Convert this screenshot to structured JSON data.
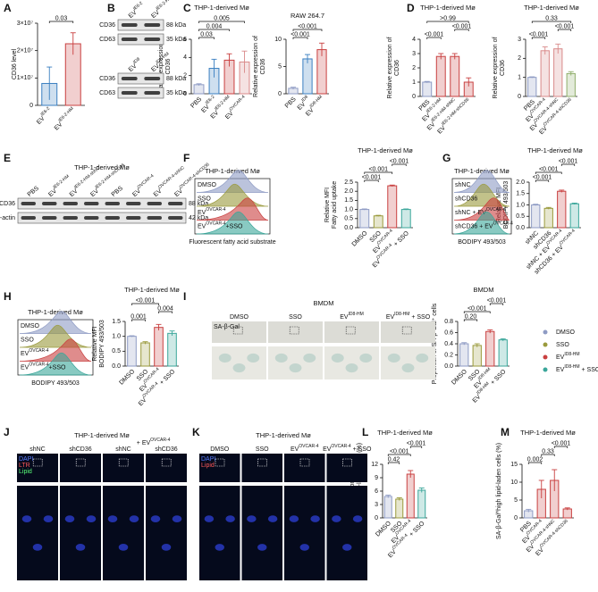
{
  "chart_data": [
    {
      "type": "bar",
      "ylabel": [
        "CD36 level"
      ],
      "categories": [
        {
          "t": "EV",
          "sup": "IE6-2"
        },
        {
          "t": "EV",
          "sup": "IE6-2-HM"
        }
      ],
      "values": [
        8000000,
        22500000
      ],
      "errors": [
        6000000,
        4000000
      ],
      "colors": [
        "#3a7fc1",
        "#c94040"
      ],
      "ylim": [
        0,
        30000000
      ],
      "yticks": [
        0,
        {
          "value": 10000000,
          "label": "1×10⁷"
        },
        {
          "value": 20000000,
          "label": "2×10⁷"
        },
        {
          "value": 30000000,
          "label": "3×10⁷"
        }
      ],
      "brackets": [
        {
          "label": "0.03",
          "from": 0,
          "to": 1
        }
      ]
    },
    {
      "type": "bar",
      "title": "THP-1-derived Mø",
      "ylabel": [
        "Relative expression of",
        "CD36"
      ],
      "categories": [
        "PBS",
        {
          "t": "EV",
          "sup": "IE6-2"
        },
        {
          "t": "EV",
          "sup": "IE6-2-HM"
        },
        {
          "t": "EV",
          "sup": "OVCAR-4"
        }
      ],
      "values": [
        1,
        2.8,
        3.7,
        3.5
      ],
      "errors": [
        0.1,
        1.0,
        0.7,
        1.2
      ],
      "colors": [
        "#8e9bc4",
        "#3a7fc1",
        "#c94040",
        "#d98a8a"
      ],
      "ylim": [
        0,
        6
      ],
      "yticks": [
        0,
        2,
        4,
        6
      ],
      "brackets": [
        {
          "label": "0.03",
          "from": 0,
          "to": 1
        },
        {
          "label": "0.004",
          "from": 0,
          "to": 2
        },
        {
          "label": "0.005",
          "from": 0,
          "to": 3
        }
      ]
    },
    {
      "type": "bar",
      "title": "RAW 264.7",
      "ylabel": [
        "Relative expression of",
        "CD36"
      ],
      "categories": [
        "PBS",
        {
          "t": "EV",
          "sup": "ID8"
        },
        {
          "t": "EV",
          "sup": "ID8-HM"
        }
      ],
      "values": [
        1,
        6.4,
        8.1
      ],
      "errors": [
        0.2,
        0.8,
        1.2
      ],
      "colors": [
        "#8e9bc4",
        "#3a7fc1",
        "#c94040"
      ],
      "ylim": [
        0,
        10
      ],
      "yticks": [
        0,
        5,
        10
      ],
      "brackets": [
        {
          "label": "<0.001",
          "from": 0,
          "to": 1
        },
        {
          "label": "<0.001",
          "from": 0,
          "to": 2
        }
      ]
    },
    {
      "type": "bar",
      "title": "THP-1-derived Mø",
      "ylabel": [
        "Relative expression of",
        "CD36"
      ],
      "categories": [
        "PBS",
        {
          "t": "EV",
          "sup": "IE6-2-HM"
        },
        {
          "t": "EV",
          "sup": "IE6-2-HM-shNC"
        },
        {
          "t": "EV",
          "sup": "IE6-2-HM-shCD36"
        }
      ],
      "values": [
        1,
        2.8,
        2.8,
        1.0
      ],
      "errors": [
        0.05,
        0.2,
        0.2,
        0.3
      ],
      "colors": [
        "#8e9bc4",
        "#c94040",
        "#c94040",
        "#c94040"
      ],
      "ylim": [
        0,
        4
      ],
      "yticks": [
        0,
        1,
        2,
        3,
        4
      ],
      "brackets": [
        {
          "label": "<0.001",
          "from": 0,
          "to": 1
        },
        {
          "label": "<0.001",
          "from": 2,
          "to": 3
        },
        {
          "label": ">0.99",
          "from": 0,
          "to": 3
        }
      ]
    },
    {
      "type": "bar",
      "title": "THP-1-derived Mø",
      "ylabel": [
        "Relative expression of",
        "CD36"
      ],
      "categories": [
        "PBS",
        {
          "t": "EV",
          "sup": "OVCAR-4"
        },
        {
          "t": "EV",
          "sup": "OVCAR-4-shNC"
        },
        {
          "t": "EV",
          "sup": "OVCAR-4-shCD36"
        }
      ],
      "values": [
        1,
        2.4,
        2.5,
        1.2
      ],
      "errors": [
        0.03,
        0.2,
        0.25,
        0.1
      ],
      "colors": [
        "#8e9bc4",
        "#d98a8a",
        "#d98a8a",
        "#8fae6a"
      ],
      "ylim": [
        0,
        3
      ],
      "yticks": [
        0,
        1,
        2,
        3
      ],
      "brackets": [
        {
          "label": "<0.001",
          "from": 0,
          "to": 1
        },
        {
          "label": "<0.001",
          "from": 2,
          "to": 3
        },
        {
          "label": "0.33",
          "from": 0,
          "to": 3
        }
      ]
    },
    {
      "type": "bar",
      "title": "THP-1-derived Mø",
      "ylabel": [
        "Relative MFI",
        "Fatty acid uptake"
      ],
      "categories": [
        "DMSO",
        "SSO",
        {
          "t": "EV",
          "sup": "OVCAR-4"
        },
        {
          "t": "EV",
          "sup": "OVCAR-4",
          "after": " + SSO"
        }
      ],
      "values": [
        1,
        0.65,
        2.3,
        1.0
      ],
      "errors": [
        0.03,
        0.03,
        0.04,
        0.03
      ],
      "colors": [
        "#8e9bc4",
        "#9a9a3c",
        "#c94040",
        "#3aa69a"
      ],
      "ylim": [
        0,
        2.5
      ],
      "yticks": [
        {
          "value": 0,
          "label": "0.0"
        },
        {
          "value": 0.5,
          "label": "0.5"
        },
        {
          "value": 1,
          "label": "1.0"
        },
        {
          "value": 1.5,
          "label": "1.5"
        },
        {
          "value": 2,
          "label": "2.0"
        },
        {
          "value": 2.5,
          "label": "2.5"
        }
      ],
      "brackets": [
        {
          "label": "<0.001",
          "from": 0,
          "to": 1
        },
        {
          "label": "<0.001",
          "from": 0,
          "to": 2
        },
        {
          "label": "<0.001",
          "from": 2,
          "to": 3
        }
      ]
    },
    {
      "type": "bar",
      "title": "THP-1-derived Mø",
      "ylabel": [
        "Relative MFI",
        "BODIPY 493/503"
      ],
      "categories": [
        "shNC",
        "shCD36",
        {
          "t": "shNC + EV",
          "sup": "OVCAR-4"
        },
        {
          "t": "shCD36 + EV",
          "sup": "OVCAR-4"
        }
      ],
      "values": [
        1,
        0.85,
        1.6,
        1.05
      ],
      "errors": [
        0.03,
        0.04,
        0.05,
        0.03
      ],
      "colors": [
        "#8e9bc4",
        "#9a9a3c",
        "#c94040",
        "#3aa69a"
      ],
      "ylim": [
        0,
        2
      ],
      "yticks": [
        {
          "value": 0,
          "label": "0.0"
        },
        {
          "value": 0.5,
          "label": "0.5"
        },
        {
          "value": 1,
          "label": "1.0"
        },
        {
          "value": 1.5,
          "label": "1.5"
        },
        {
          "value": 2,
          "label": "2.0"
        }
      ],
      "brackets": [
        {
          "label": "<0.001",
          "from": 0,
          "to": 1
        },
        {
          "label": "<0.001",
          "from": 0,
          "to": 2
        },
        {
          "label": "<0.001",
          "from": 2,
          "to": 3
        }
      ]
    },
    {
      "type": "bar",
      "title": "THP-1-derived Mø",
      "ylabel": [
        "Relative MFI",
        "BODIPY 493/503"
      ],
      "categories": [
        "DMSO",
        "SSO",
        {
          "t": "EV",
          "sup": "OVCAR-4"
        },
        {
          "t": "EV",
          "sup": "OVCAR-4",
          "after": " + SSO"
        }
      ],
      "values": [
        1,
        0.78,
        1.3,
        1.1
      ],
      "errors": [
        0.02,
        0.04,
        0.1,
        0.08
      ],
      "colors": [
        "#8e9bc4",
        "#9a9a3c",
        "#c94040",
        "#3aa69a"
      ],
      "ylim": [
        0,
        1.5
      ],
      "yticks": [
        {
          "value": 0,
          "label": "0.0"
        },
        {
          "value": 0.5,
          "label": "0.5"
        },
        {
          "value": 1,
          "label": "1.0"
        },
        {
          "value": 1.5,
          "label": "1.5"
        }
      ],
      "brackets": [
        {
          "label": "0.001",
          "from": 0,
          "to": 1
        },
        {
          "label": "0.004",
          "from": 2,
          "to": 3
        },
        {
          "label": "<0.001",
          "from": 0,
          "to": 2
        }
      ]
    },
    {
      "type": "bar",
      "title": "BMDM",
      "ylabel": [
        "Proportion of SA-β-Gal⁺ cells"
      ],
      "categories": [
        "DMSO",
        "SSO",
        {
          "t": "EV",
          "sup": "ID8-HM"
        },
        {
          "t": "EV",
          "sup": "ID8-HM",
          "after": " + SSO"
        }
      ],
      "values": [
        0.4,
        0.37,
        0.62,
        0.47
      ],
      "errors": [
        0.02,
        0.03,
        0.03,
        0.02
      ],
      "colors": [
        "#8e9bc4",
        "#9a9a3c",
        "#c94040",
        "#3aa69a"
      ],
      "ylim": [
        0,
        0.8
      ],
      "yticks": [
        {
          "value": 0,
          "label": "0.0"
        },
        0.2,
        0.4,
        0.6,
        0.8
      ],
      "brackets": [
        {
          "label": "0.20",
          "from": 0,
          "to": 1
        },
        {
          "label": "<0.001",
          "from": 0,
          "to": 2
        },
        {
          "label": "<0.001",
          "from": 2,
          "to": 3
        }
      ],
      "legend": true
    },
    {
      "type": "bar",
      "title": "THP-1-derived Mø",
      "ylabel": [
        "Proportion of",
        "SA-β-Gal^high lipid-laden cells (%)"
      ],
      "categories": [
        "DMSO",
        "SSO",
        {
          "t": "EV",
          "sup": "OVCAR-4"
        },
        {
          "t": "EV",
          "sup": "OVCAR-4",
          "after": " + SSO"
        }
      ],
      "values": [
        4.8,
        4.2,
        9.8,
        6.2
      ],
      "errors": [
        0.3,
        0.3,
        0.8,
        0.5
      ],
      "colors": [
        "#8e9bc4",
        "#9a9a3c",
        "#c94040",
        "#3aa69a"
      ],
      "ylim": [
        0,
        12
      ],
      "yticks": [
        0,
        3,
        6,
        9,
        12
      ],
      "brackets": [
        {
          "label": "0.42",
          "from": 0,
          "to": 1
        },
        {
          "label": "<0.001",
          "from": 0,
          "to": 2
        },
        {
          "label": "<0.001",
          "from": 2,
          "to": 3
        }
      ]
    },
    {
      "type": "bar",
      "title": "THP-1-derived Mø",
      "ylabel": [
        "SA-β-Gal^high lipid-laden cells (%)"
      ],
      "categories": [
        "PBS",
        {
          "t": "EV",
          "sup": "OVCAR-4"
        },
        {
          "t": "EV",
          "sup": "OVCAR-4-shNC"
        },
        {
          "t": "EV",
          "sup": "OVCAR-4-shCD36"
        }
      ],
      "values": [
        2,
        8,
        10.5,
        2.5
      ],
      "errors": [
        0.4,
        2.5,
        3,
        0.3
      ],
      "colors": [
        "#8e9bc4",
        "#c94040",
        "#c94040",
        "#c94040"
      ],
      "ylim": [
        0,
        15
      ],
      "yticks": [
        0,
        5,
        10,
        15
      ],
      "brackets": [
        {
          "label": "0.002",
          "from": 0,
          "to": 1
        },
        {
          "label": "0.33",
          "from": 1,
          "to": 2
        },
        {
          "label": "<0.001",
          "from": 2,
          "to": 3
        }
      ]
    }
  ],
  "figure": {
    "letters": [
      "A",
      "B",
      "C",
      "D",
      "E",
      "F",
      "G",
      "H",
      "I",
      "J",
      "K",
      "L",
      "M"
    ],
    "blots": [
      {
        "lanes": [
          {
            "t": "EV",
            "sup": "IE6-2"
          },
          {
            "t": "EV",
            "sup": "IE6-2-HM"
          }
        ],
        "rows": [
          [
            "CD36",
            "88 kDa"
          ],
          [
            "CD63",
            "35 kDa"
          ]
        ]
      },
      {
        "lanes": [
          {
            "t": "EV",
            "sup": "ID8"
          },
          {
            "t": "EV",
            "sup": "ID8-HM"
          }
        ],
        "rows": [
          [
            "CD36",
            "88 kDa"
          ],
          [
            "CD63",
            "35 kDa"
          ]
        ]
      },
      {
        "title": "THP-1-derived Mø",
        "lanes": [
          "PBS",
          {
            "t": "EV",
            "sup": "IE6-2-HM"
          },
          {
            "t": "EV",
            "sup": "IE6-2-HM-shNC"
          },
          {
            "t": "EV",
            "sup": "IE6-2-HM-shCD36"
          },
          "PBS",
          {
            "t": "EV",
            "sup": "OVCAR-4"
          },
          {
            "t": "EV",
            "sup": "OVCAR-4-shNC"
          },
          {
            "t": "EV",
            "sup": "OVCAR-4-shCD36"
          }
        ],
        "rows": [
          [
            "CD36",
            "88 kDa"
          ],
          [
            "β-actin",
            "42 kDa"
          ]
        ]
      }
    ],
    "flows": [
      {
        "title": "THP-1-derived Mø",
        "curves": [
          "DMSO",
          "SSO",
          {
            "t": "EV",
            "sup": "OVCAR-4"
          },
          {
            "t": "EV",
            "sup": "OVCAR-4",
            "after": "+SSO"
          }
        ],
        "xlabel": "Fluorescent fatty acid substrate"
      },
      {
        "title": "THP-1-derived Mø",
        "curves": [
          "shNC",
          "shCD36",
          {
            "t": "shNC + EV",
            "sup": "OVCAR-4"
          },
          {
            "t": "shCD36 + EV",
            "sup": "OVCAR-4"
          }
        ],
        "xlabel": "BODIPY 493/503"
      },
      {
        "title": "THP-1-derived Mø",
        "curves": [
          "DMSO",
          "SSO",
          {
            "t": "EV",
            "sup": "OVCAR-4"
          },
          {
            "t": "EV",
            "sup": "OVCAR-4",
            "after": "+SSO"
          }
        ],
        "xlabel": "BODIPY 493/503"
      }
    ],
    "images": [
      {
        "title": "BMDM",
        "stain": "SA-β-Gal",
        "columns": [
          "DMSO",
          "SSO",
          {
            "t": "EV",
            "sup": "ID8-HM"
          },
          {
            "t": "EV",
            "sup": "ID8-HM",
            "after": " + SSO"
          }
        ]
      },
      {
        "title": "THP-1-derived Mø",
        "header": {
          "t": "+ EV",
          "sup": "OVCAR-4"
        },
        "channels": [
          "DAPI",
          "LTR",
          "Lipid"
        ],
        "columns": [
          "shNC",
          "shCD36",
          "shNC",
          "shCD36"
        ]
      },
      {
        "title": "THP-1-derived Mø",
        "channels": [
          "DAPI",
          "Lipid"
        ],
        "columns": [
          "DMSO",
          "SSO",
          {
            "t": "EV",
            "sup": "OVCAR-4"
          },
          {
            "t": "EV",
            "sup": "OVCAR-4",
            "after": " + SSO"
          }
        ]
      }
    ]
  }
}
